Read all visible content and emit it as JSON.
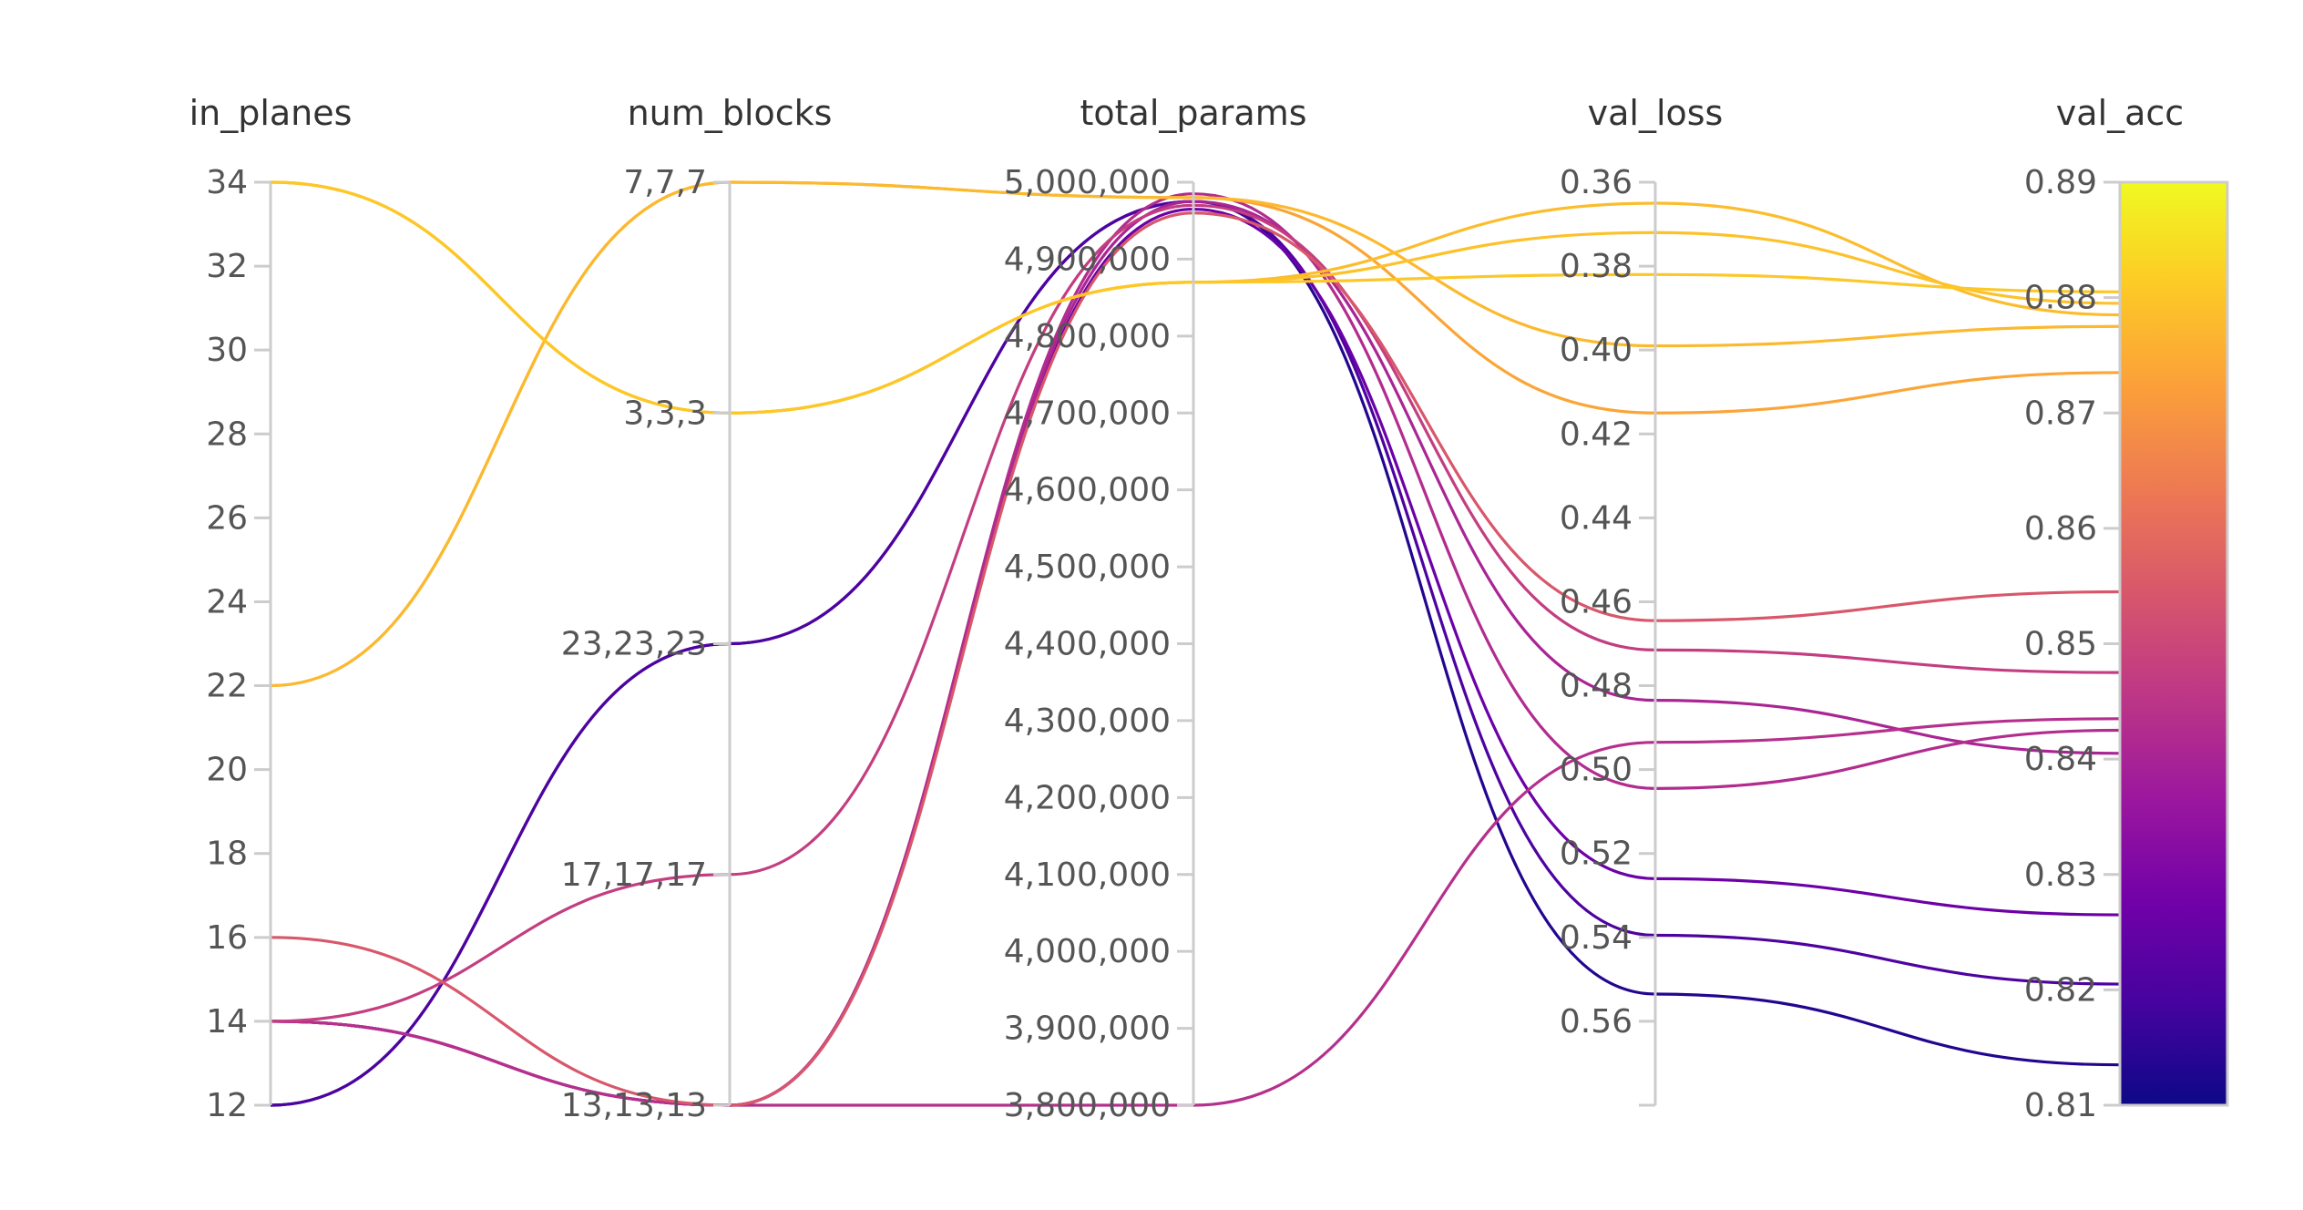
{
  "chart_data": {
    "type": "parallel_coordinates",
    "grid": false,
    "dimensions": [
      {
        "key": "in_planes",
        "label": "in_planes",
        "type": "numeric",
        "range": [
          12,
          34
        ],
        "ticks": [
          "12",
          "14",
          "16",
          "18",
          "20",
          "22",
          "24",
          "26",
          "28",
          "30",
          "32",
          "34"
        ]
      },
      {
        "key": "num_blocks",
        "label": "num_blocks",
        "type": "categorical",
        "categories": [
          "13,13,13",
          "17,17,17",
          "23,23,23",
          "3,3,3",
          "7,7,7"
        ]
      },
      {
        "key": "total_params",
        "label": "total_params",
        "type": "numeric",
        "range": [
          3800000,
          5000000
        ],
        "ticks": [
          "3,800,000",
          "3,900,000",
          "4,000,000",
          "4,100,000",
          "4,200,000",
          "4,300,000",
          "4,400,000",
          "4,500,000",
          "4,600,000",
          "4,700,000",
          "4,800,000",
          "4,900,000",
          "5,000,000"
        ]
      },
      {
        "key": "val_loss",
        "label": "val_loss",
        "type": "numeric",
        "range": [
          0.36,
          0.58
        ],
        "reversed": true,
        "ticks": [
          "0.36",
          "0.38",
          "0.40",
          "0.42",
          "0.44",
          "0.46",
          "0.48",
          "0.50",
          "0.52",
          "0.54",
          "0.56"
        ]
      },
      {
        "key": "val_acc",
        "label": "val_acc",
        "type": "numeric",
        "range": [
          0.81,
          0.89
        ],
        "ticks": [
          "0.81",
          "0.82",
          "0.83",
          "0.84",
          "0.85",
          "0.86",
          "0.87",
          "0.88",
          "0.89"
        ]
      }
    ],
    "colorscale": {
      "name": "plasma",
      "by": "val_acc",
      "range": [
        0.81,
        0.89
      ],
      "stops": [
        "#0d0887",
        "#46039f",
        "#7201a8",
        "#9c179e",
        "#bd3786",
        "#d8576b",
        "#ed7953",
        "#fb9f3a",
        "#fdca26",
        "#f0f921"
      ]
    },
    "rows": [
      {
        "in_planes": 34,
        "num_blocks": "3,3,3",
        "total_params": 4870000,
        "val_loss": 0.365,
        "val_acc": 0.8785
      },
      {
        "in_planes": 34,
        "num_blocks": "3,3,3",
        "total_params": 4870000,
        "val_loss": 0.372,
        "val_acc": 0.8795
      },
      {
        "in_planes": 34,
        "num_blocks": "3,3,3",
        "total_params": 4870000,
        "val_loss": 0.382,
        "val_acc": 0.8805
      },
      {
        "in_planes": 22,
        "num_blocks": "7,7,7",
        "total_params": 4980000,
        "val_loss": 0.399,
        "val_acc": 0.8775
      },
      {
        "in_planes": 22,
        "num_blocks": "7,7,7",
        "total_params": 4980000,
        "val_loss": 0.415,
        "val_acc": 0.8735
      },
      {
        "in_planes": 16,
        "num_blocks": "13,13,13",
        "total_params": 4960000,
        "val_loss": 0.4645,
        "val_acc": 0.8545
      },
      {
        "in_planes": 14,
        "num_blocks": "17,17,17",
        "total_params": 4970000,
        "val_loss": 0.4715,
        "val_acc": 0.8475
      },
      {
        "in_planes": 14,
        "num_blocks": "13,13,13",
        "total_params": 3800000,
        "val_loss": 0.4935,
        "val_acc": 0.8435
      },
      {
        "in_planes": 14,
        "num_blocks": "13,13,13",
        "total_params": 4975000,
        "val_loss": 0.4835,
        "val_acc": 0.8405
      },
      {
        "in_planes": 14,
        "num_blocks": "13,13,13",
        "total_params": 4985000,
        "val_loss": 0.5045,
        "val_acc": 0.8425
      },
      {
        "in_planes": 14,
        "num_blocks": "13,13,13",
        "total_params": 4965000,
        "val_loss": 0.526,
        "val_acc": 0.8265
      },
      {
        "in_planes": 12,
        "num_blocks": "23,23,23",
        "total_params": 4975000,
        "val_loss": 0.5395,
        "val_acc": 0.8205
      },
      {
        "in_planes": 12,
        "num_blocks": "23,23,23",
        "total_params": 4975000,
        "val_loss": 0.5535,
        "val_acc": 0.8135
      }
    ]
  }
}
